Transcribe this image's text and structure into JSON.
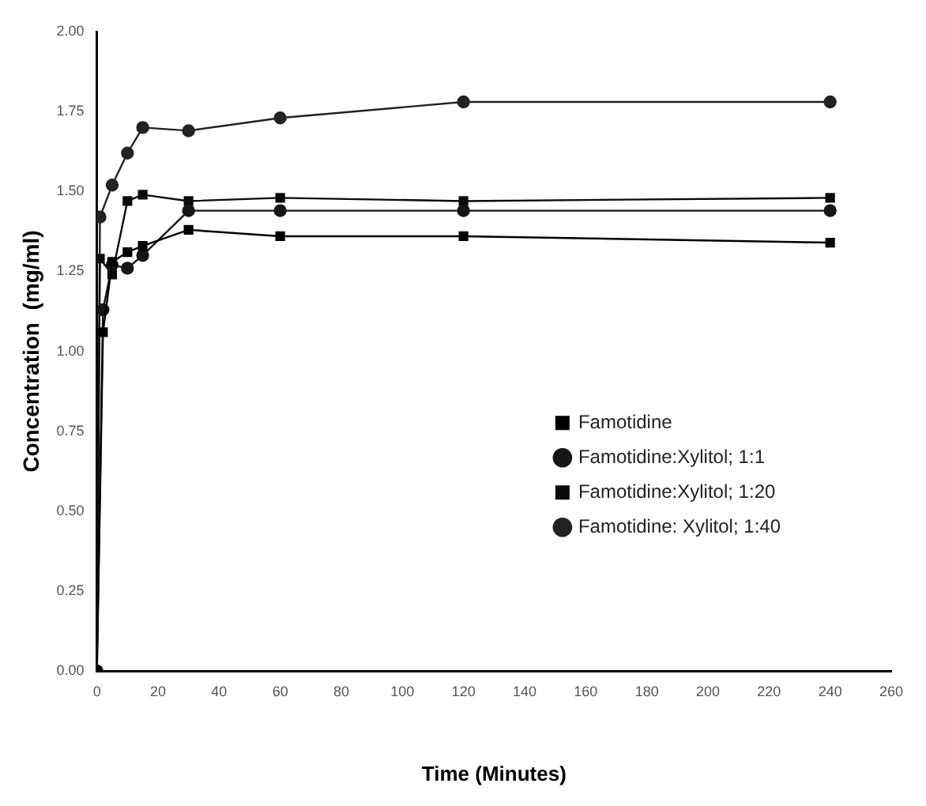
{
  "chart_data": {
    "type": "line",
    "xlabel": "Time (Minutes)",
    "ylabel": "Concentration  (mg/ml)",
    "xlim": [
      0,
      260
    ],
    "xticks": [
      0,
      20,
      40,
      60,
      80,
      100,
      120,
      140,
      160,
      180,
      200,
      220,
      240,
      260
    ],
    "ylim": [
      0,
      2
    ],
    "yticks": [
      {
        "value": 0,
        "label": "0.00"
      },
      {
        "value": 0.25,
        "label": "0.25"
      },
      {
        "value": 0.5,
        "label": "0.50"
      },
      {
        "value": 0.75,
        "label": "0.75"
      },
      {
        "value": 1,
        "label": "1.00"
      },
      {
        "value": 1.25,
        "label": "1.25"
      },
      {
        "value": 1.5,
        "label": "1.50"
      },
      {
        "value": 1.75,
        "label": "1.75"
      },
      {
        "value": 2,
        "label": "2.00"
      }
    ],
    "grid": false,
    "legend": "bottom right",
    "line_style": "solid",
    "series": [
      {
        "name": "Famotidine",
        "color": "#000000",
        "marker": "square",
        "x": [
          0,
          2,
          5,
          10,
          15,
          30,
          60,
          120,
          240
        ],
        "values": [
          0,
          1.06,
          1.28,
          1.31,
          1.33,
          1.38,
          1.36,
          1.36,
          1.34
        ]
      },
      {
        "name": "Famotidine:Xylitol; 1:1",
        "color": "#161616",
        "marker": "circle",
        "x": [
          0,
          2,
          5,
          10,
          15,
          30,
          60,
          120,
          240
        ],
        "values": [
          0,
          1.13,
          1.27,
          1.26,
          1.3,
          1.44,
          1.44,
          1.44,
          1.44
        ]
      },
      {
        "name": "Famotidine:Xylitol; 1:20",
        "color": "#0b0b0b",
        "marker": "square",
        "x": [
          0,
          1,
          5,
          10,
          15,
          30,
          60,
          120,
          240
        ],
        "values": [
          0,
          1.29,
          1.24,
          1.47,
          1.49,
          1.47,
          1.48,
          1.47,
          1.48
        ]
      },
      {
        "name": "Famotidine: Xylitol; 1:40",
        "color": "#222222",
        "marker": "circle",
        "x": [
          0,
          1,
          5,
          10,
          15,
          30,
          60,
          120,
          240
        ],
        "values": [
          0,
          1.42,
          1.52,
          1.62,
          1.7,
          1.69,
          1.73,
          1.78,
          1.78
        ]
      }
    ]
  }
}
